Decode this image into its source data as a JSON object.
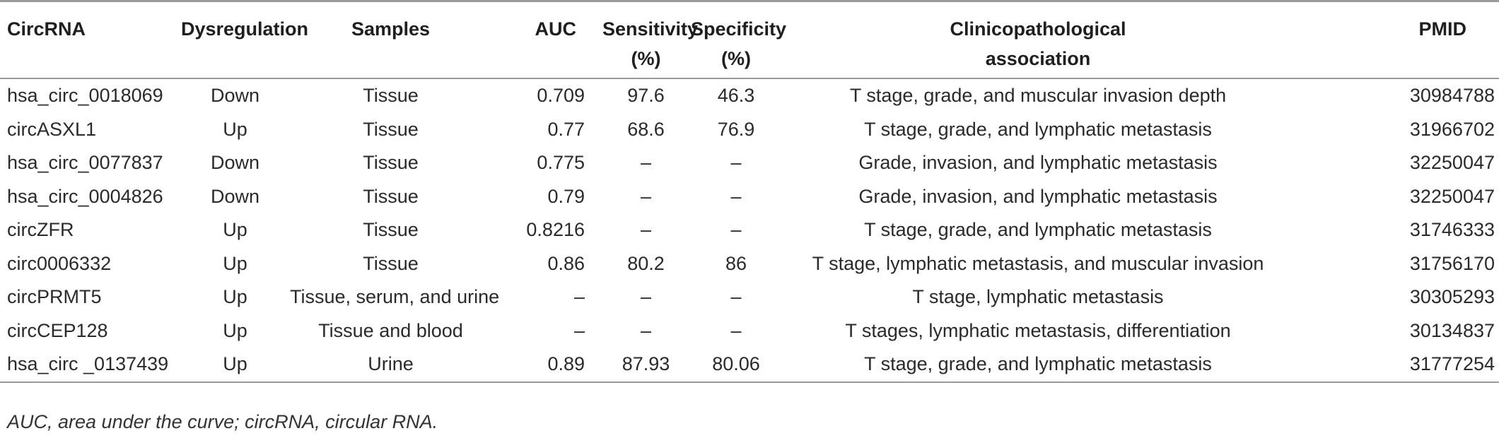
{
  "table": {
    "headers": [
      {
        "lines": [
          "CircRNA"
        ]
      },
      {
        "lines": [
          "Dysregulation"
        ]
      },
      {
        "lines": [
          "Samples"
        ]
      },
      {
        "lines": [
          "AUC"
        ]
      },
      {
        "lines": [
          "Sensitivity",
          "(%)"
        ]
      },
      {
        "lines": [
          "Specificity",
          "(%)"
        ]
      },
      {
        "lines": [
          "Clinicopathological",
          "association"
        ]
      },
      {
        "lines": [
          "PMID"
        ]
      }
    ],
    "rows": [
      [
        "hsa_circ_0018069",
        "Down",
        "Tissue",
        "0.709",
        "97.6",
        "46.3",
        "T stage, grade, and muscular invasion depth",
        "30984788"
      ],
      [
        "circASXL1",
        "Up",
        "Tissue",
        "0.77",
        "68.6",
        "76.9",
        "T stage, grade, and lymphatic metastasis",
        "31966702"
      ],
      [
        "hsa_circ_0077837",
        "Down",
        "Tissue",
        "0.775",
        "–",
        "–",
        "Grade, invasion, and lymphatic metastasis",
        "32250047"
      ],
      [
        "hsa_circ_0004826",
        "Down",
        "Tissue",
        "0.79",
        "–",
        "–",
        "Grade, invasion, and lymphatic metastasis",
        "32250047"
      ],
      [
        "circZFR",
        "Up",
        "Tissue",
        "0.8216",
        "–",
        "–",
        "T stage, grade, and lymphatic metastasis",
        "31746333"
      ],
      [
        "circ0006332",
        "Up",
        "Tissue",
        "0.86",
        "80.2",
        "86",
        "T stage, lymphatic metastasis, and muscular invasion",
        "31756170"
      ],
      [
        "circPRMT5",
        "Up",
        "Tissue, serum, and urine",
        "–",
        "–",
        "–",
        "T stage, lymphatic metastasis",
        "30305293"
      ],
      [
        "circCEP128",
        "Up",
        "Tissue and blood",
        "–",
        "–",
        "–",
        "T stages, lymphatic metastasis, differentiation",
        "30134837"
      ],
      [
        "hsa_circ _0137439",
        "Up",
        "Urine",
        "0.89",
        "87.93",
        "80.06",
        "T stage, grade, and lymphatic metastasis",
        "31777254"
      ]
    ]
  },
  "footnote": "AUC, area under the curve; circRNA, circular RNA."
}
